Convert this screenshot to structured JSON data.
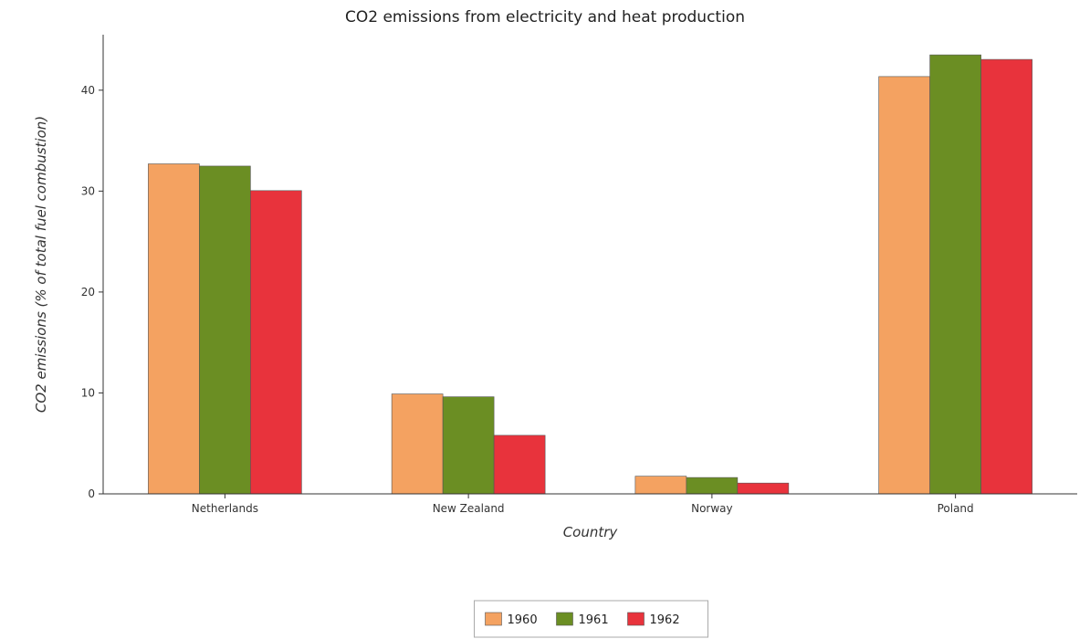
{
  "chart_data": {
    "type": "bar",
    "title": "CO2 emissions from electricity and heat production",
    "xlabel": "Country",
    "ylabel": "CO2 emissions (% of total fuel combustion)",
    "categories": [
      "Netherlands",
      "New Zealand",
      "Norway",
      "Poland"
    ],
    "series": [
      {
        "name": "1960",
        "color": "#f4a261",
        "values": [
          32.7,
          9.9,
          1.75,
          41.35
        ]
      },
      {
        "name": "1961",
        "color": "#6b8e23",
        "values": [
          32.48,
          9.62,
          1.62,
          43.5
        ]
      },
      {
        "name": "1962",
        "color": "#e8333c",
        "values": [
          30.05,
          5.8,
          1.07,
          43.05
        ]
      }
    ],
    "ylim": [
      0,
      45.5
    ],
    "yticks": [
      0,
      10,
      20,
      30,
      40
    ],
    "grid": false,
    "legend_position": "bottom-center"
  }
}
